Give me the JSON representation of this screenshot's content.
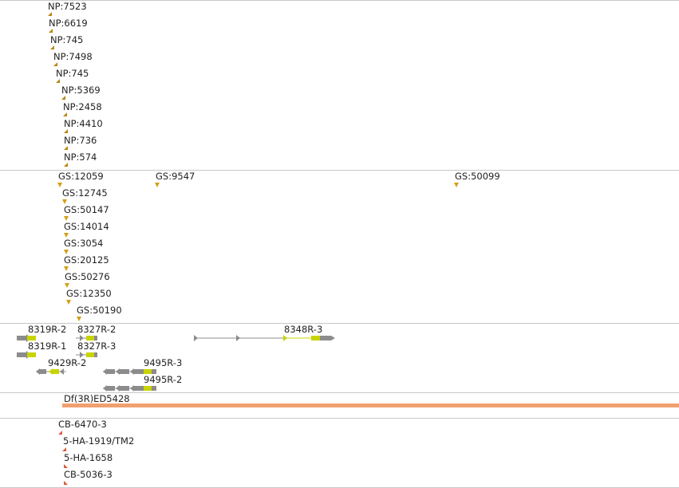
{
  "np_track": [
    {
      "label": "NP:7523"
    },
    {
      "label": "NP:6619"
    },
    {
      "label": "NP:745"
    },
    {
      "label": "NP:7498"
    },
    {
      "label": "NP:745"
    },
    {
      "label": "NP:5369"
    },
    {
      "label": "NP:2458"
    },
    {
      "label": "NP:4410"
    },
    {
      "label": "NP:736"
    },
    {
      "label": "NP:574"
    }
  ],
  "gs_track": [
    {
      "label": "GS:12059"
    },
    {
      "label": "GS:9547"
    },
    {
      "label": "GS:50099"
    },
    {
      "label": "GS:12745"
    },
    {
      "label": "GS:50147"
    },
    {
      "label": "GS:14014"
    },
    {
      "label": "GS:3054"
    },
    {
      "label": "GS:20125"
    },
    {
      "label": "GS:50276"
    },
    {
      "label": "GS:12350"
    },
    {
      "label": "GS:50190"
    }
  ],
  "gene_track": [
    {
      "label": "8319R-2"
    },
    {
      "label": "8327R-2"
    },
    {
      "label": "8348R-3"
    },
    {
      "label": "8319R-1"
    },
    {
      "label": "8327R-3"
    },
    {
      "label": "9429R-2"
    },
    {
      "label": "9495R-3"
    },
    {
      "label": "9495R-2"
    }
  ],
  "deficiency_track": {
    "label": "Df(3R)ED5428"
  },
  "stock_track": [
    {
      "label": "CB-6470-3"
    },
    {
      "label": "5-HA-1919/TM2"
    },
    {
      "label": "5-HA-1658"
    },
    {
      "label": "CB-5036-3"
    }
  ],
  "colors": {
    "np_marker": "#b8860b",
    "gs_marker": "#d4a017",
    "gene_grey": "#8c8c8c",
    "gene_cds": "#c8d400",
    "deficiency_bar": "#f0a070",
    "stock_marker": "#e05a3c",
    "separator": "#c8c8c8"
  }
}
